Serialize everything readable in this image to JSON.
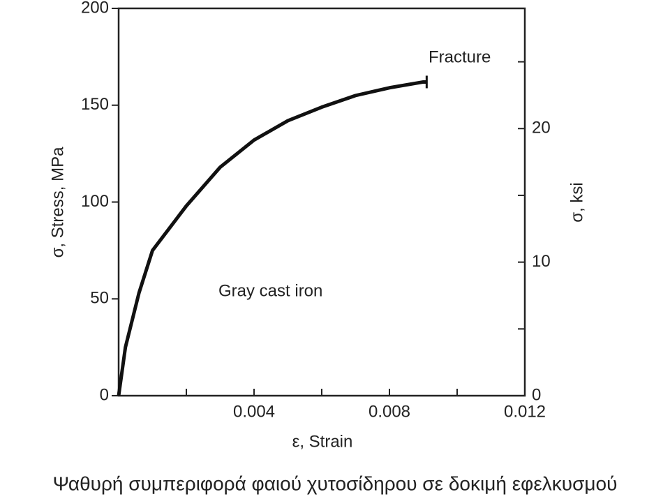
{
  "chart_data": {
    "type": "line",
    "x_label": "ε, Strain",
    "y_label": "σ, Stress, MPa",
    "y2_label": "σ, ksi",
    "annotations": [
      "Fracture",
      "Gray cast iron"
    ],
    "x": [
      0,
      0.0002,
      0.0006,
      0.001,
      0.002,
      0.003,
      0.004,
      0.005,
      0.006,
      0.007,
      0.008,
      0.009,
      0.0091
    ],
    "series": [
      {
        "name": "Gray cast iron",
        "color": "#111111",
        "values": [
          0,
          25,
          53,
          75,
          98,
          118,
          132,
          142,
          149,
          155,
          159,
          162,
          162
        ]
      }
    ],
    "xlim": [
      0,
      0.012
    ],
    "xticks": [
      0,
      0.004,
      0.008,
      0.012
    ],
    "xminorticks": [
      0.002,
      0.006,
      0.01
    ],
    "ylim": [
      0,
      200
    ],
    "yticks": [
      0,
      50,
      100,
      150,
      200
    ],
    "y2lim": [
      0,
      29
    ],
    "y2ticks": [
      0,
      10,
      20
    ],
    "y2minorticks": [
      5,
      15,
      25
    ],
    "grid": false
  },
  "caption": "Ψαθυρή συμπεριφορά  φαιού χυτοσίδηρου σε δοκιμή εφελκυσμού"
}
